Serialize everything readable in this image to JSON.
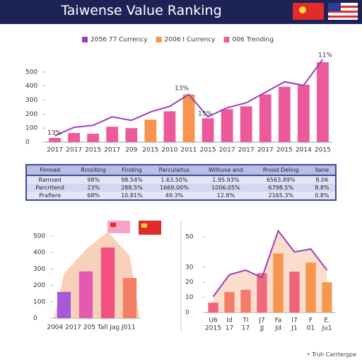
{
  "title": "Taiwense Value Ranking",
  "chart_data": [
    {
      "type": "combo",
      "categories": [
        "2017",
        "2017",
        "2015",
        "2017",
        "209",
        "2015",
        "2010",
        "2011",
        "2015",
        "2017",
        "2017",
        "2017",
        "2015",
        "2014",
        "2015"
      ],
      "ylim": [
        0,
        610
      ],
      "yticks": [
        0,
        100,
        200,
        300,
        400,
        500
      ],
      "annotations": [
        "13%",
        "13%",
        "15%",
        "11%"
      ],
      "series": [
        {
          "name": "2056 77 Currency",
          "type": "line",
          "color": "#9b3fb8",
          "values": [
            45,
            105,
            120,
            180,
            155,
            215,
            255,
            340,
            180,
            245,
            280,
            355,
            430,
            405,
            590
          ]
        },
        {
          "name": "2006 I Currency",
          "type": "bar",
          "color": "#f7944e",
          "values": [
            null,
            null,
            null,
            null,
            null,
            160,
            null,
            340,
            null,
            null,
            null,
            null,
            null,
            null,
            null
          ]
        },
        {
          "name": "006 Trending",
          "type": "bar",
          "color": "#ec5a9c",
          "values": [
            30,
            65,
            60,
            110,
            100,
            null,
            220,
            null,
            170,
            235,
            255,
            340,
            395,
            410,
            570
          ]
        }
      ]
    },
    {
      "type": "combo",
      "categories": [
        null,
        null,
        null,
        null
      ],
      "axis_caption": "2004 2017 205 Tall Jag J011",
      "ylim": [
        0,
        560
      ],
      "yticks": [
        0,
        100,
        200,
        300,
        400,
        500
      ],
      "series": [
        {
          "type": "area",
          "color": "#f6c9ad",
          "values": [
            270,
            420,
            525,
            380
          ]
        },
        {
          "type": "bar",
          "color": "#ec5a9c",
          "colors": [
            "#a55ad8",
            "#e559b0",
            "#f2507f",
            "#f47f66"
          ],
          "values": [
            160,
            285,
            430,
            245
          ]
        }
      ]
    },
    {
      "type": "combo",
      "categories": [
        "U6",
        "Id",
        "TI",
        "J7",
        "Fa",
        "I7",
        "F",
        "E."
      ],
      "sublabels": [
        "2015",
        "17",
        "17",
        "JJ",
        "Jd",
        "J1",
        "01",
        "Ju1"
      ],
      "ylim": [
        0,
        57
      ],
      "yticks": [
        0,
        10,
        20,
        30,
        50
      ],
      "series": [
        {
          "type": "area",
          "color": "#f9d8c4",
          "values": [
            10.5,
            25,
            28,
            23,
            54,
            40,
            42,
            28
          ]
        },
        {
          "type": "line",
          "color": "#9b3fb8",
          "values": [
            10.5,
            25,
            28,
            23,
            54,
            40,
            42,
            28
          ]
        },
        {
          "type": "bar",
          "color": "#f7944e",
          "colors": [
            "#f2617a",
            "#f47a6a",
            "#f47a6a",
            "#f06a7c",
            "#f7944e",
            "#f2617a",
            "#f7944e",
            "#f49a50"
          ],
          "values": [
            6.5,
            13.5,
            15,
            26,
            39,
            27,
            33,
            20
          ]
        }
      ]
    }
  ],
  "table": {
    "header": [
      "Fimned",
      "Rrositing",
      "Finding",
      "Parculaitus",
      "Wilhuse and",
      "Prood Deling",
      "Ilane"
    ],
    "rows": [
      [
        "Ramsed",
        "98%",
        "98.54%",
        "1.63.50%",
        "1.95.93%",
        "6563.89%",
        "8.06"
      ],
      [
        "Parcritend",
        "23%",
        "288.5%",
        "1669.00%",
        "1006.05%",
        "6798.5%",
        "8.8%"
      ],
      [
        "Prafiere",
        "68%",
        "10.81%",
        "49.3%",
        "12.8%",
        "2165.3%",
        "0.8%"
      ]
    ]
  },
  "footer": "Truh Carrtergpe"
}
